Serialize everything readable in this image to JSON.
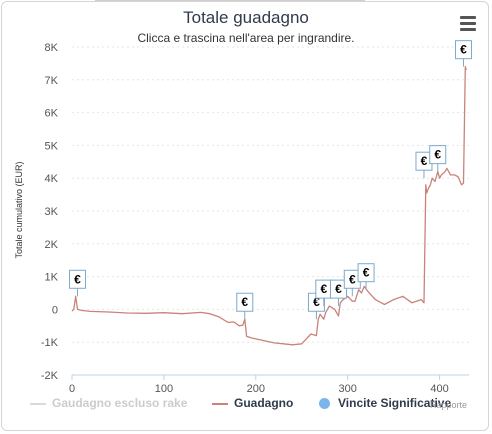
{
  "header": {
    "title": "Totale guadagno",
    "subtitle": "Clicca e trascina nell'area per ingrandire."
  },
  "credit": "Rapporte",
  "colors": {
    "profit": "#c8837a",
    "excl_rake": "#d9d9d9",
    "marker": "#7cb5ec",
    "grid": "#e6e6e6"
  },
  "chart_data": {
    "type": "line",
    "title": "Totale guadagno",
    "subtitle": "Clicca e trascina nell'area per ingrandire.",
    "xlabel": "",
    "ylabel": "Totale cumulativo (EUR)",
    "xlim": [
      0,
      432
    ],
    "ylim": [
      -2000,
      8000
    ],
    "x_ticks": [
      0,
      100,
      200,
      300,
      400
    ],
    "y_ticks": [
      -2000,
      -1000,
      0,
      1000,
      2000,
      3000,
      4000,
      5000,
      6000,
      7000,
      8000
    ],
    "y_tick_labels": [
      "-2K",
      "-1K",
      "0",
      "1K",
      "2K",
      "3K",
      "4K",
      "5K",
      "6K",
      "7K",
      "8K"
    ],
    "grid": "horizontal",
    "legend": "bottom",
    "series": [
      {
        "name": "Gaudagno escluso rake",
        "style": "line",
        "visible": false,
        "values": []
      },
      {
        "name": "Guadagno",
        "style": "line",
        "x": [
          0,
          2,
          4,
          6,
          10,
          20,
          40,
          60,
          80,
          100,
          120,
          140,
          150,
          160,
          170,
          176,
          182,
          186,
          188,
          190,
          195,
          200,
          210,
          220,
          230,
          240,
          250,
          255,
          260,
          266,
          268,
          270,
          274,
          276,
          280,
          286,
          290,
          292,
          295,
          300,
          305,
          308,
          312,
          315,
          318,
          322,
          330,
          340,
          350,
          360,
          370,
          380,
          383,
          385,
          386,
          388,
          390,
          392,
          395,
          398,
          400,
          402,
          404,
          406,
          408,
          412,
          416,
          420,
          424,
          426,
          428,
          429
        ],
        "values": [
          -50,
          0,
          400,
          0,
          -30,
          -60,
          -80,
          -110,
          -120,
          -100,
          -130,
          -90,
          -130,
          -230,
          -400,
          -380,
          -500,
          -480,
          -300,
          -820,
          -870,
          -900,
          -960,
          -1020,
          -1050,
          -1080,
          -1050,
          -900,
          -750,
          -800,
          -300,
          -150,
          -300,
          -100,
          100,
          0,
          -200,
          200,
          300,
          400,
          250,
          250,
          600,
          500,
          700,
          550,
          300,
          150,
          300,
          400,
          200,
          300,
          200,
          3800,
          3550,
          3700,
          3800,
          4000,
          3900,
          4200,
          4000,
          4100,
          4150,
          4200,
          4300,
          4100,
          4100,
          4050,
          3800,
          3850,
          7400,
          7300
        ]
      },
      {
        "name": "Vincite Significative",
        "style": "markers",
        "marker_label": "€",
        "x": [
          6,
          188,
          266,
          274,
          290,
          305,
          320,
          383,
          398,
          426
        ],
        "values": [
          400,
          -300,
          -300,
          100,
          100,
          400,
          600,
          4000,
          4200,
          7400
        ]
      }
    ]
  }
}
